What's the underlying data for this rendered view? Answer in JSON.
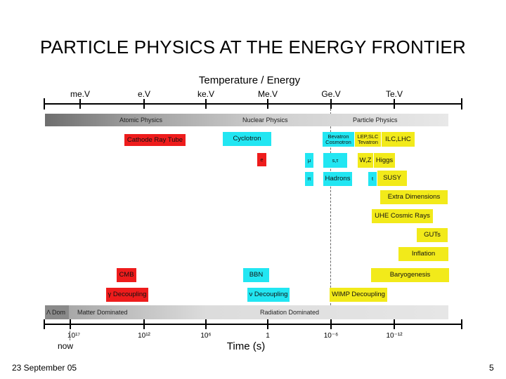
{
  "title": "PARTICLE PHYSICS AT THE ENERGY FRONTIER",
  "top_axis": {
    "title": "Temperature / Energy",
    "ticks": [
      "me.V",
      "e.V",
      "ke.V",
      "Me.V",
      "Ge.V",
      "Te.V"
    ]
  },
  "physics_bar": {
    "labels": [
      "Atomic Physics",
      "Nuclear Physics",
      "Particle Physics"
    ]
  },
  "boxes": {
    "cathode": "Cathode Ray Tube",
    "cyclotron": "Cyclotron",
    "e": "e",
    "bevatron": "Bevatron Cosmotron",
    "lepslc": "LEP,SLC Tevatron",
    "ilclhc": "ILC,LHC",
    "mu": "μ",
    "stau": "s,τ",
    "wz": "W,Z",
    "higgs": "Higgs",
    "pi": "π",
    "hadrons": "Hadrons",
    "t": "t",
    "susy": "SUSY",
    "extradim": "Extra Dimensions",
    "uhe": "UHE Cosmic Rays",
    "guts": "GUTs",
    "inflation": "Inflation",
    "cmb": "CMB",
    "bbn": "BBN",
    "baryo": "Baryogenesis",
    "gammadec": "γ Decoupling",
    "nudec": "ν Decoupling",
    "wimpdec": "WIMP Decoupling"
  },
  "era_bar": {
    "lambda": "Λ Dom",
    "matter": "Matter Dominated",
    "radiation": "Radiation Dominated"
  },
  "bottom_axis": {
    "title": "Time (s)",
    "now": "now",
    "ticks": [
      "10¹⁷",
      "10¹²",
      "10⁶",
      "1",
      "10⁻⁶",
      "10⁻¹²"
    ]
  },
  "footer": {
    "date": "23 September 05",
    "page": "5"
  },
  "colors": {
    "accelerator": "#ee1c1c",
    "cyan": "#22e6f2",
    "yellow": "#f2ea1a"
  }
}
